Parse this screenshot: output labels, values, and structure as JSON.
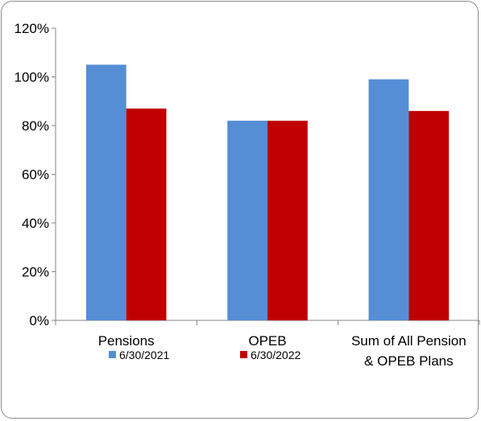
{
  "chart_data": {
    "type": "bar",
    "title": "",
    "xlabel": "",
    "ylabel": "",
    "categories": [
      [
        "Pensions"
      ],
      [
        "OPEB"
      ],
      [
        "Sum of All Pension",
        "& OPEB Plans"
      ]
    ],
    "series": [
      {
        "name": "6/30/2021",
        "color": "#558ed5",
        "values": [
          105,
          82,
          99
        ]
      },
      {
        "name": "6/30/2022",
        "color": "#c00000",
        "values": [
          87,
          82,
          86
        ]
      }
    ],
    "ylim": [
      0,
      120
    ],
    "yticks": [
      0,
      20,
      40,
      60,
      80,
      100,
      120
    ],
    "ytick_labels": [
      "0%",
      "20%",
      "40%",
      "60%",
      "80%",
      "100%",
      "120%"
    ],
    "legend_position": "bottom",
    "grid": false
  }
}
